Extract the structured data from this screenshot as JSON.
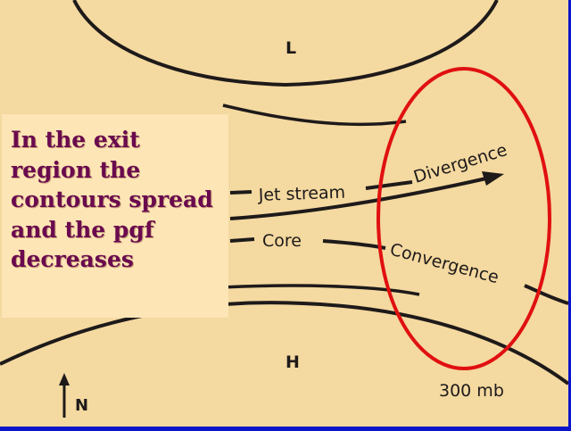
{
  "figure": {
    "labels": {
      "low": "L",
      "high": "H",
      "north": "N",
      "level": "300 mb",
      "jet_stream": "Jet stream",
      "core": "Core",
      "divergence": "Divergence",
      "convergence": "Convergence"
    }
  },
  "callout": {
    "lines": [
      "In the exit",
      "region the",
      "contours spread",
      "and the pgf",
      "decreases"
    ]
  },
  "colors": {
    "background_frame": "#0a14c8",
    "paper": "#f4d9a0",
    "callout_bg": "#fde5b5",
    "callout_text": "#6a0a4e",
    "highlight_ellipse": "#e01010",
    "ink": "#1e1a1a"
  }
}
